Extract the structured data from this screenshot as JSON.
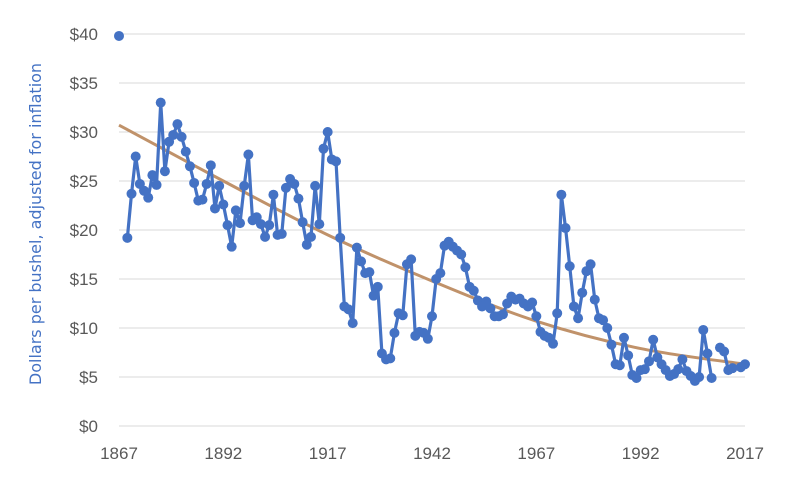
{
  "chart_data": {
    "type": "line",
    "title": "",
    "xlabel": "",
    "ylabel": "Dollars per bushel, adjusted for inflation",
    "xlim": [
      1867,
      2017
    ],
    "ylim": [
      0,
      40
    ],
    "x_ticks": [
      "1867",
      "1892",
      "1917",
      "1942",
      "1967",
      "1992",
      "2017"
    ],
    "y_ticks": [
      "$0",
      "$5",
      "$10",
      "$15",
      "$20",
      "$25",
      "$30",
      "$35",
      "$40"
    ],
    "grid": "horizontal",
    "legend": "none",
    "colors": {
      "series": "#4472c4",
      "trend": "#c0926a",
      "grid": "#d9d9d9",
      "axis_label": "#4472c4",
      "tick_label": "#595959"
    },
    "series": [
      {
        "values": [
          [
            1867,
            39.8
          ],
          [
            1869,
            19.2
          ],
          [
            1870,
            23.7
          ],
          [
            1871,
            27.5
          ],
          [
            1872,
            24.7
          ],
          [
            1873,
            24.0
          ],
          [
            1874,
            23.3
          ],
          [
            1875,
            25.6
          ],
          [
            1876,
            24.6
          ],
          [
            1877,
            33.0
          ],
          [
            1878,
            26.0
          ],
          [
            1879,
            29.0
          ],
          [
            1880,
            29.7
          ],
          [
            1881,
            30.8
          ],
          [
            1882,
            29.5
          ],
          [
            1883,
            28.0
          ],
          [
            1884,
            26.5
          ],
          [
            1885,
            24.8
          ],
          [
            1886,
            23.0
          ],
          [
            1887,
            23.1
          ],
          [
            1888,
            24.7
          ],
          [
            1889,
            26.6
          ],
          [
            1890,
            22.2
          ],
          [
            1891,
            24.5
          ],
          [
            1892,
            22.6
          ],
          [
            1893,
            20.5
          ],
          [
            1894,
            18.3
          ],
          [
            1895,
            22.0
          ],
          [
            1896,
            20.7
          ],
          [
            1897,
            24.5
          ],
          [
            1898,
            27.7
          ],
          [
            1899,
            21.0
          ],
          [
            1900,
            21.3
          ],
          [
            1901,
            20.6
          ],
          [
            1902,
            19.3
          ],
          [
            1903,
            20.5
          ],
          [
            1904,
            23.6
          ],
          [
            1905,
            19.5
          ],
          [
            1906,
            19.6
          ],
          [
            1907,
            24.3
          ],
          [
            1908,
            25.2
          ],
          [
            1909,
            24.7
          ],
          [
            1910,
            23.2
          ],
          [
            1911,
            20.8
          ],
          [
            1912,
            18.5
          ],
          [
            1913,
            19.3
          ],
          [
            1914,
            24.5
          ],
          [
            1915,
            20.6
          ],
          [
            1916,
            28.3
          ],
          [
            1917,
            30.0
          ],
          [
            1918,
            27.2
          ],
          [
            1919,
            27.0
          ],
          [
            1920,
            19.2
          ],
          [
            1921,
            12.2
          ],
          [
            1922,
            11.9
          ],
          [
            1923,
            10.5
          ],
          [
            1924,
            18.2
          ],
          [
            1925,
            16.8
          ],
          [
            1926,
            15.6
          ],
          [
            1927,
            15.7
          ],
          [
            1928,
            13.3
          ],
          [
            1929,
            14.2
          ],
          [
            1930,
            7.4
          ],
          [
            1931,
            6.8
          ],
          [
            1932,
            6.9
          ],
          [
            1933,
            9.5
          ],
          [
            1934,
            11.5
          ],
          [
            1935,
            11.3
          ],
          [
            1936,
            16.5
          ],
          [
            1937,
            17.0
          ],
          [
            1938,
            9.2
          ],
          [
            1939,
            9.6
          ],
          [
            1940,
            9.5
          ],
          [
            1941,
            8.9
          ],
          [
            1942,
            11.2
          ],
          [
            1943,
            15.0
          ],
          [
            1944,
            15.6
          ],
          [
            1945,
            18.4
          ],
          [
            1946,
            18.8
          ],
          [
            1947,
            18.3
          ],
          [
            1948,
            17.9
          ],
          [
            1949,
            17.5
          ],
          [
            1950,
            16.2
          ],
          [
            1951,
            14.2
          ],
          [
            1952,
            13.8
          ],
          [
            1953,
            12.8
          ],
          [
            1954,
            12.2
          ],
          [
            1955,
            12.7
          ],
          [
            1956,
            12.0
          ],
          [
            1957,
            11.2
          ],
          [
            1958,
            11.2
          ],
          [
            1959,
            11.4
          ],
          [
            1960,
            12.5
          ],
          [
            1961,
            13.2
          ],
          [
            1962,
            12.9
          ],
          [
            1963,
            13.0
          ],
          [
            1964,
            12.5
          ],
          [
            1965,
            12.2
          ],
          [
            1966,
            12.6
          ],
          [
            1967,
            11.2
          ],
          [
            1968,
            9.6
          ],
          [
            1969,
            9.2
          ],
          [
            1970,
            9.0
          ],
          [
            1971,
            8.4
          ],
          [
            1972,
            11.5
          ],
          [
            1973,
            23.6
          ],
          [
            1974,
            20.2
          ],
          [
            1975,
            16.3
          ],
          [
            1976,
            12.2
          ],
          [
            1977,
            11.0
          ],
          [
            1978,
            13.6
          ],
          [
            1979,
            15.8
          ],
          [
            1980,
            16.5
          ],
          [
            1981,
            12.9
          ],
          [
            1982,
            11.0
          ],
          [
            1983,
            10.8
          ],
          [
            1984,
            10.0
          ],
          [
            1985,
            8.3
          ],
          [
            1986,
            6.3
          ],
          [
            1987,
            6.2
          ],
          [
            1988,
            9.0
          ],
          [
            1989,
            7.2
          ],
          [
            1990,
            5.2
          ],
          [
            1991,
            4.9
          ],
          [
            1992,
            5.7
          ],
          [
            1993,
            5.8
          ],
          [
            1994,
            6.6
          ],
          [
            1995,
            8.8
          ],
          [
            1996,
            7.0
          ],
          [
            1997,
            6.3
          ],
          [
            1998,
            5.7
          ],
          [
            1999,
            5.1
          ],
          [
            2000,
            5.3
          ],
          [
            2001,
            5.8
          ],
          [
            2002,
            6.8
          ],
          [
            2003,
            5.6
          ],
          [
            2004,
            5.1
          ],
          [
            2005,
            4.6
          ],
          [
            2006,
            5.0
          ],
          [
            2007,
            9.8
          ],
          [
            2008,
            7.4
          ],
          [
            2009,
            4.9
          ],
          [
            2011,
            8.0
          ],
          [
            2012,
            7.6
          ],
          [
            2013,
            5.7
          ],
          [
            2014,
            5.9
          ],
          [
            2016,
            6.0
          ],
          [
            2017,
            6.3
          ]
        ]
      },
      {
        "type": "trendline",
        "values": [
          [
            1867,
            30.7
          ],
          [
            1892,
            25.0
          ],
          [
            1917,
            19.5
          ],
          [
            1942,
            14.8
          ],
          [
            1967,
            10.7
          ],
          [
            1992,
            7.9
          ],
          [
            2017,
            6.3
          ]
        ]
      }
    ]
  }
}
